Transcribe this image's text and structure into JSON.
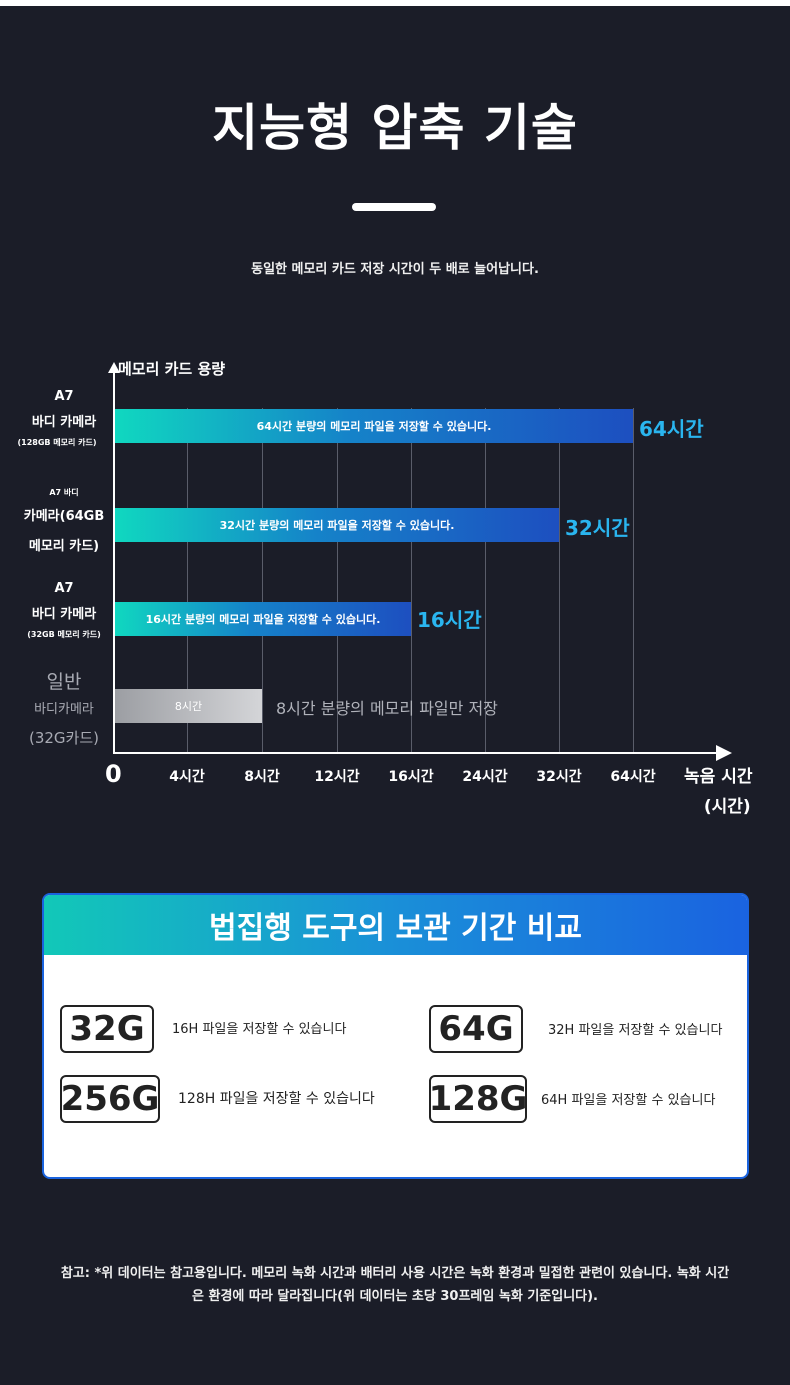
{
  "header": {
    "title": "지능형 압축 기술",
    "subtitle": "동일한 메모리 카드 저장 시간이 두 배로 늘어납니다."
  },
  "chart_data": {
    "type": "bar",
    "y_axis_label": "메모리 카드 용량",
    "x_axis_label_line1": "녹음 시간",
    "x_axis_label_line2": "(시간)",
    "zero_label": "0",
    "x_ticks": [
      "4시간",
      "8시간",
      "12시간",
      "16시간",
      "24시간",
      "32시간",
      "64시간"
    ],
    "grid": true,
    "categories": [
      {
        "label_lines": [
          "A7",
          "바디 카메라"
        ],
        "label_small": "(128GB 메모리 카드)",
        "hours": 64,
        "bar_text": "64시간 분량의 메모리 파일을 저장할 수 있습니다.",
        "value_label": "64시간"
      },
      {
        "label_small": "A7 바디",
        "label_lines": [
          "카메라(64GB",
          "메모리 카드)"
        ],
        "hours": 32,
        "bar_text": "32시간 분량의 메모리 파일을 저장할 수 있습니다.",
        "value_label": "32시간"
      },
      {
        "label_lines": [
          "A7",
          "바디 카메라"
        ],
        "label_small": "(32GB 메모리 카드)",
        "hours": 16,
        "bar_text": "16시간 분량의 메모리 파일을 저장할 수 있습니다.",
        "value_label": "16시간"
      },
      {
        "label_lines": [
          "일반",
          "바디카메라",
          "(32G카드)"
        ],
        "hours": 8,
        "bar_text": "8시간",
        "value_label": "8시간 분량의 메모리 파일만 저장"
      }
    ],
    "colors": {
      "bar_start": "#10d8c0",
      "bar_end": "#1d4fc0",
      "value_text": "#2ab5ef",
      "baseline_bar": "#c0c1c5"
    }
  },
  "comparison": {
    "title": "법집행 도구의 보관 기간 비교",
    "items": [
      {
        "capacity": "32G",
        "text": "16H 파일을 저장할 수 있습니다"
      },
      {
        "capacity": "64G",
        "text": "32H 파일을 저장할 수 있습니다"
      },
      {
        "capacity": "256G",
        "text": "128H 파일을 저장할 수 있습니다"
      },
      {
        "capacity": "128G",
        "text": "64H 파일을 저장할 수 있습니다"
      }
    ]
  },
  "footnote": {
    "line1": "참고: *위 데이터는 참고용입니다. 메모리 녹화 시간과 배터리 사용 시간은 녹화 환경과 밀접한 관련이 있습니다. 녹화 시간",
    "line2": "은 환경에 따라 달라집니다(위 데이터는 초당 30프레임 녹화 기준입니다)."
  }
}
